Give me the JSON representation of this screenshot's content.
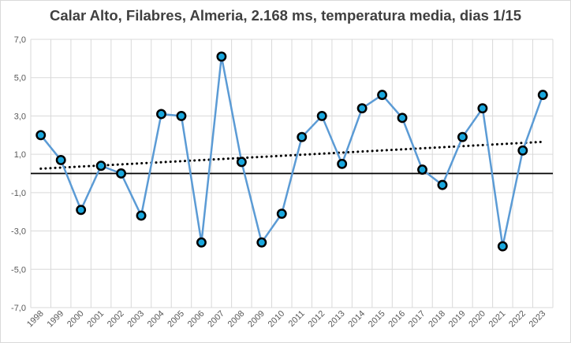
{
  "chart_data": {
    "type": "line",
    "title": "Calar Alto, Filabres, Almeria, 2.168 ms, temperatura media, dias 1/15",
    "xlabel": "",
    "ylabel": "",
    "ylim": [
      -7,
      7
    ],
    "yticks": [
      "7,0",
      "5,0",
      "3,0",
      "1,0",
      "-1,0",
      "-3,0",
      "-5,0",
      "-7,0"
    ],
    "grid": "horizontal, vertical",
    "categories": [
      "1998",
      "1999",
      "2000",
      "2001",
      "2002",
      "2003",
      "2004",
      "2005",
      "2006",
      "2007",
      "2008",
      "2009",
      "2010",
      "2011",
      "2012",
      "2013",
      "2014",
      "2015",
      "2016",
      "2017",
      "2018",
      "2019",
      "2020",
      "2021",
      "2022",
      "2023"
    ],
    "series": [
      {
        "values": [
          2.0,
          0.7,
          -1.9,
          0.4,
          0.0,
          -2.2,
          3.1,
          3.0,
          -3.6,
          6.1,
          0.6,
          -3.6,
          -2.1,
          1.9,
          3.0,
          0.5,
          3.4,
          4.1,
          2.9,
          0.2,
          -0.6,
          1.9,
          3.4,
          -3.8,
          1.2,
          4.1
        ],
        "line_color": "#5b9bd5",
        "marker_color": "#1aa7dd",
        "marker_edge": "#000000"
      }
    ],
    "trendline": {
      "type": "linear",
      "style": "dotted",
      "color": "#000000",
      "start": 0.25,
      "end": 1.65
    },
    "zero_line": true
  }
}
